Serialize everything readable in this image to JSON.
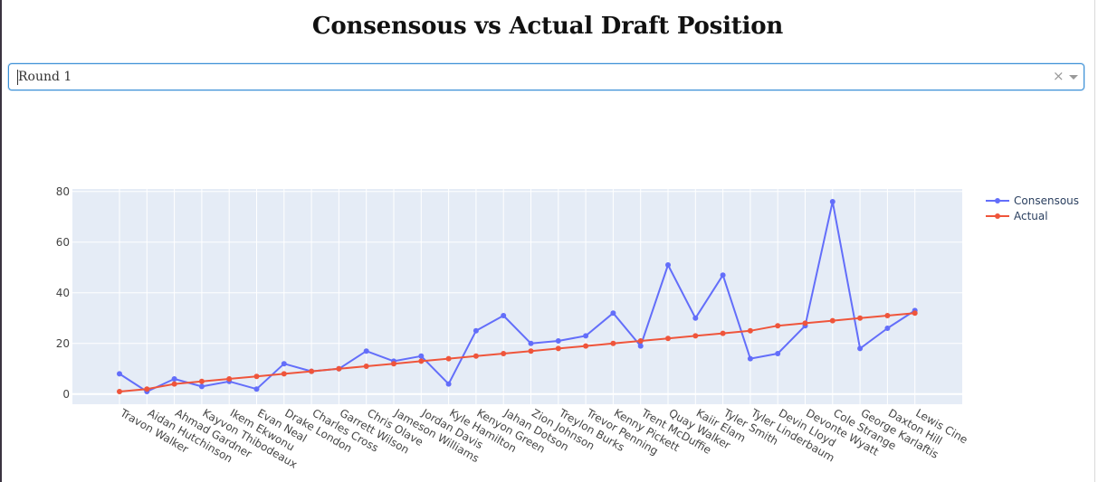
{
  "page": {
    "title": "Consensous vs Actual Draft Position"
  },
  "dropdown": {
    "value": "Round 1"
  },
  "colors": {
    "consensous": "#636efa",
    "actual": "#ef553b",
    "plot_bg": "#e5ecf6",
    "grid": "#ffffff"
  },
  "chart_data": {
    "type": "line",
    "title": "Consensous vs Actual Draft Position",
    "categories": [
      "Travon Walker",
      "Aidan Hutchinson",
      "Ahmad Gardner",
      "Kayvon Thibodeaux",
      "Ikem Ekwonu",
      "Evan Neal",
      "Drake London",
      "Charles Cross",
      "Garrett Wilson",
      "Chris Olave",
      "Jameson Williams",
      "Jordan Davis",
      "Kyle Hamilton",
      "Kenyon Green",
      "Jahan Dotson",
      "Zion Johnson",
      "Treylon Burks",
      "Trevor Penning",
      "Kenny Pickett",
      "Trent McDuffie",
      "Quay Walker",
      "Kaiir Elam",
      "Tyler Smith",
      "Tyler Linderbaum",
      "Devin Lloyd",
      "Devonte Wyatt",
      "Cole Strange",
      "George Karlaftis",
      "Daxton Hill",
      "Lewis Cine"
    ],
    "series": [
      {
        "name": "Consensous",
        "values": [
          8,
          1,
          6,
          3,
          5,
          2,
          12,
          9,
          10,
          17,
          13,
          15,
          4,
          25,
          31,
          20,
          21,
          23,
          32,
          19,
          51,
          30,
          47,
          14,
          16,
          27,
          76,
          18,
          26,
          33
        ]
      },
      {
        "name": "Actual",
        "values": [
          1,
          2,
          4,
          5,
          6,
          7,
          8,
          9,
          10,
          11,
          12,
          13,
          14,
          15,
          16,
          17,
          18,
          19,
          20,
          21,
          22,
          23,
          24,
          25,
          27,
          28,
          29,
          30,
          31,
          32
        ]
      }
    ],
    "ylim": [
      -4,
      81
    ],
    "yticks": [
      0,
      20,
      40,
      60,
      80
    ],
    "xlabel": "",
    "ylabel": "",
    "grid": true,
    "legend": "top-right"
  }
}
